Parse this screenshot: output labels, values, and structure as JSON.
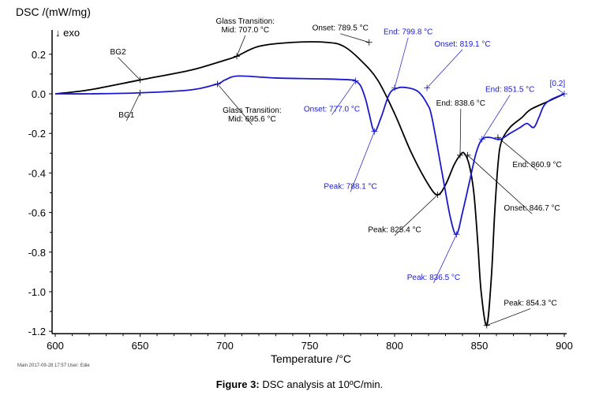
{
  "chart_data": {
    "type": "line",
    "title": "",
    "ylabel": "DSC /(mW/mg)",
    "xlabel": "Temperature /°C",
    "direction_label": "↓ exo",
    "xlim": [
      600,
      900
    ],
    "ylim": [
      -1.2,
      0.3
    ],
    "x_ticks": [
      600,
      650,
      700,
      750,
      800,
      850,
      900
    ],
    "y_ticks": [
      0.2,
      0.0,
      -0.2,
      -0.4,
      -0.6,
      -0.8,
      -1.0,
      -1.2
    ],
    "y_tick_labels": [
      "0.2",
      "0.0",
      "-0.2",
      "-0.4",
      "-0.6",
      "-0.8",
      "-1.0",
      "-1.2"
    ],
    "grid": false,
    "series": [
      {
        "name": "BG2",
        "color": "#000000",
        "x": [
          600,
          620,
          650,
          680,
          700,
          707,
          720,
          740,
          760,
          770,
          780,
          790,
          800,
          810,
          820,
          825.4,
          830,
          835,
          838.6,
          841,
          844,
          846.7,
          849,
          851,
          854.3,
          857,
          859,
          861,
          863,
          868,
          875,
          880,
          890,
          900
        ],
        "y": [
          0,
          0.02,
          0.07,
          0.12,
          0.17,
          0.19,
          0.24,
          0.26,
          0.26,
          0.24,
          0.17,
          0.07,
          -0.1,
          -0.3,
          -0.46,
          -0.51,
          -0.46,
          -0.36,
          -0.31,
          -0.3,
          -0.36,
          -0.5,
          -0.75,
          -1.0,
          -1.17,
          -0.93,
          -0.6,
          -0.35,
          -0.24,
          -0.17,
          -0.12,
          -0.08,
          -0.04,
          0
        ]
      },
      {
        "name": "BG1",
        "color": "#1a1acc",
        "x": [
          600,
          620,
          650,
          680,
          695.6,
          700,
          708,
          730,
          760,
          775,
          777,
          780,
          783,
          785,
          788.1,
          792,
          797,
          802,
          808,
          814,
          819.1,
          822,
          828,
          833,
          836.5,
          840,
          844,
          848,
          851.5,
          856,
          862,
          868,
          874,
          878,
          882,
          885,
          888,
          892,
          900
        ],
        "y": [
          0,
          0.0,
          0.005,
          0.02,
          0.05,
          0.07,
          0.09,
          0.08,
          0.075,
          0.07,
          0.065,
          0.04,
          -0.03,
          -0.1,
          -0.19,
          -0.12,
          0.0,
          0.03,
          0.03,
          0.01,
          -0.05,
          -0.12,
          -0.4,
          -0.63,
          -0.71,
          -0.6,
          -0.45,
          -0.3,
          -0.23,
          -0.22,
          -0.23,
          -0.2,
          -0.17,
          -0.15,
          -0.17,
          -0.12,
          -0.06,
          -0.03,
          0
        ]
      }
    ],
    "annotations": [
      {
        "id": "bg2",
        "text": [
          "BG2"
        ],
        "color": "#000000",
        "point": [
          650,
          0.07
        ],
        "label_at": [
          637,
          0.2
        ]
      },
      {
        "id": "bg1",
        "text": [
          "BG1"
        ],
        "color": "#000000",
        "point": [
          650,
          0.005
        ],
        "label_at": [
          642,
          -0.12
        ]
      },
      {
        "id": "gt-black",
        "text": [
          "Glass Transition:",
          "Mid: 707.0 °C"
        ],
        "color": "#000000",
        "point": [
          707,
          0.19
        ],
        "label_at": [
          712,
          0.31
        ]
      },
      {
        "id": "gt-blue",
        "text": [
          "Glass Transition:",
          "Mid: 695.6 °C"
        ],
        "color": "#000000",
        "point": [
          695.6,
          0.05
        ],
        "label_at": [
          716,
          -0.14
        ]
      },
      {
        "id": "onset-black-1",
        "text": [
          "Onset: 789.5 °C"
        ],
        "color": "#000000",
        "point": [
          785,
          0.26
        ],
        "label_at": [
          768,
          0.32
        ]
      },
      {
        "id": "end-blue-1",
        "text": [
          "End: 799.8 °C"
        ],
        "color": "#1a1acc",
        "point": [
          800,
          0.03
        ],
        "label_at": [
          808,
          0.3
        ]
      },
      {
        "id": "onset-blue-2",
        "text": [
          "Onset: 819.1 °C"
        ],
        "color": "#1a1acc",
        "point": [
          819.1,
          0.03
        ],
        "label_at": [
          840,
          0.24
        ]
      },
      {
        "id": "onset-blue-1",
        "text": [
          "Onset: 777.0 °C"
        ],
        "color": "#1a1acc",
        "point": [
          777,
          0.065
        ],
        "label_at": [
          763,
          -0.09
        ]
      },
      {
        "id": "peak-blue-1",
        "text": [
          "Peak: 788.1 °C"
        ],
        "color": "#1a1acc",
        "point": [
          788.1,
          -0.19
        ],
        "label_at": [
          774,
          -0.48
        ]
      },
      {
        "id": "end-black-1",
        "text": [
          "End: 838.6 °C"
        ],
        "color": "#000000",
        "point": [
          838.6,
          -0.31
        ],
        "label_at": [
          839,
          -0.06
        ]
      },
      {
        "id": "end-blue-2",
        "text": [
          "End: 851.5 °C"
        ],
        "color": "#1a1acc",
        "point": [
          851.5,
          -0.23
        ],
        "label_at": [
          868,
          0.01
        ]
      },
      {
        "id": "end-black-2",
        "text": [
          "End: 860.9 °C"
        ],
        "color": "#000000",
        "point": [
          860.9,
          -0.22
        ],
        "label_at": [
          884,
          -0.37
        ]
      },
      {
        "id": "onset-black-2",
        "text": [
          "Onset: 846.7 °C"
        ],
        "color": "#000000",
        "point": [
          843,
          -0.31
        ],
        "label_at": [
          881,
          -0.59
        ]
      },
      {
        "id": "peak-black-1",
        "text": [
          "Peak: 825.4 °C"
        ],
        "color": "#000000",
        "point": [
          825.4,
          -0.51
        ],
        "label_at": [
          800,
          -0.7
        ]
      },
      {
        "id": "peak-blue-2",
        "text": [
          "Peak: 836.5 °C"
        ],
        "color": "#1a1acc",
        "point": [
          836.5,
          -0.71
        ],
        "label_at": [
          823,
          -0.94
        ]
      },
      {
        "id": "peak-black-2",
        "text": [
          "Peak: 854.3 °C"
        ],
        "color": "#000000",
        "point": [
          854.3,
          -1.17
        ],
        "label_at": [
          880,
          -1.07
        ]
      },
      {
        "id": "marker-02",
        "text": [
          "[0.2]"
        ],
        "color": "#1a1acc",
        "point": [
          900,
          0.0
        ],
        "label_at": [
          896,
          0.04
        ]
      }
    ]
  },
  "footer": {
    "text": "Main   2017-09-28 17:57   User: Edie"
  },
  "caption": {
    "label": "Figure 3:",
    "text": " DSC analysis at 10ºC/min."
  }
}
